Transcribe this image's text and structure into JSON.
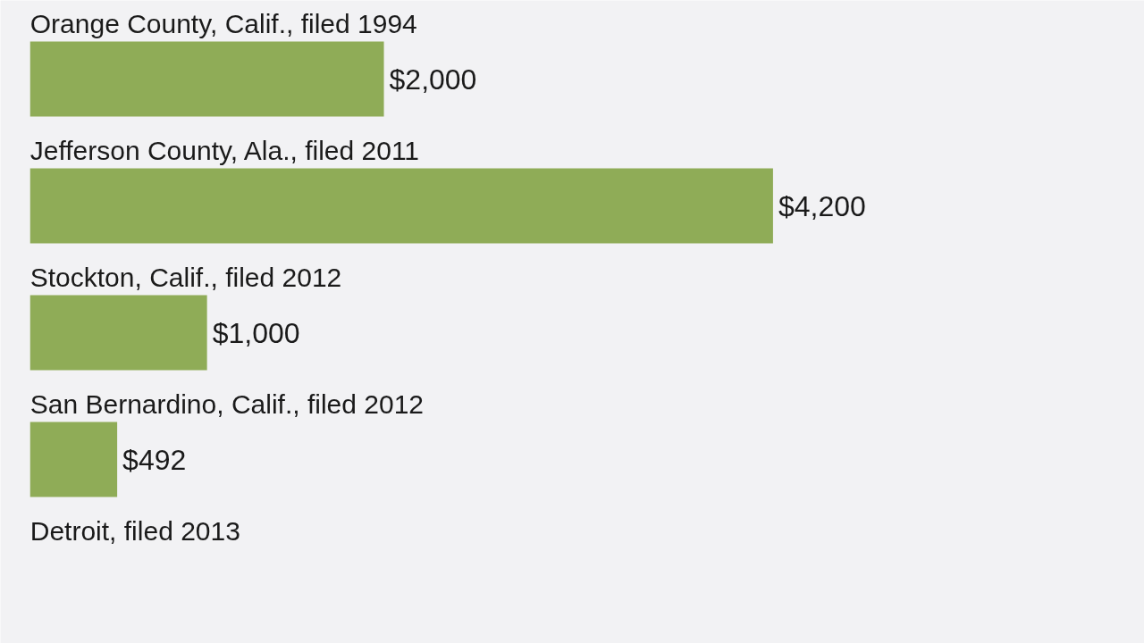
{
  "chart_data": {
    "type": "bar",
    "orientation": "horizontal",
    "categories": [
      "Orange County, Calif., filed 1994",
      "Jefferson County, Ala., filed 2011",
      "Stockton, Calif., filed 2012",
      "San Bernardino, Calif., filed 2012",
      "Detroit, filed 2013"
    ],
    "values": [
      2000,
      4200,
      1000,
      492,
      null
    ],
    "value_labels": [
      "$2,000",
      "$4,200",
      "$1,000",
      "$492",
      null
    ],
    "color": "#8fac57"
  }
}
